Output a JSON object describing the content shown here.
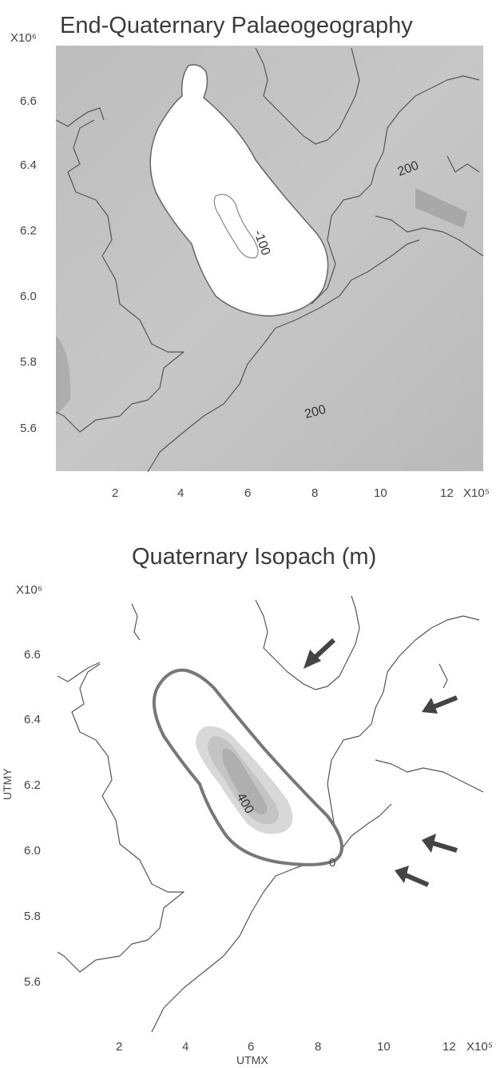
{
  "panels": [
    {
      "id": "palaeogeography",
      "title": "End-Quaternary Palaeogeography",
      "y_exp": "X10⁶",
      "x_exp": "X10⁵",
      "yticks": [
        "6.6",
        "6.4",
        "6.2",
        "6.0",
        "5.8",
        "5.6"
      ],
      "xticks": [
        "2",
        "4",
        "6",
        "8",
        "10",
        "12"
      ],
      "contour_labels": [
        "200",
        "-100",
        "200"
      ],
      "colors": {
        "background": "#c6c6c6",
        "basin": "#ffffff",
        "coast": "#555555"
      }
    },
    {
      "id": "isopach",
      "title": "Quaternary Isopach (m)",
      "y_exp": "X10⁶",
      "x_exp": "X10⁵",
      "ylabel": "UTMY",
      "xlabel": "UTMX",
      "yticks": [
        "6.6",
        "6.4",
        "6.2",
        "6.0",
        "5.8",
        "5.6"
      ],
      "xticks": [
        "2",
        "4",
        "6",
        "8",
        "10",
        "12"
      ],
      "contour_labels": [
        "400",
        "0"
      ],
      "arrows": [
        "ice-flow-arrow",
        "ice-flow-arrow",
        "ice-flow-arrow",
        "ice-flow-arrow"
      ],
      "colors": {
        "background": "#ffffff",
        "outline": "#777777",
        "fill": "#a9a9a9"
      }
    }
  ]
}
